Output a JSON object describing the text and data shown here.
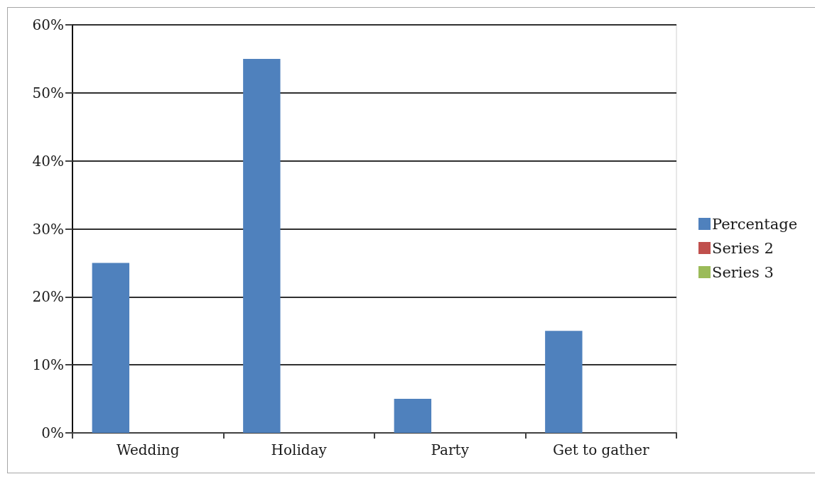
{
  "chart_data": {
    "type": "bar",
    "categories": [
      "Wedding",
      "Holiday",
      "Party",
      "Get to gather"
    ],
    "series": [
      {
        "name": "Percentage",
        "color": "#4f81bd",
        "values": [
          25,
          55,
          5,
          15
        ]
      },
      {
        "name": "Series 2",
        "color": "#c0504d",
        "values": [
          null,
          null,
          null,
          null
        ]
      },
      {
        "name": "Series 3",
        "color": "#9bbb59",
        "values": [
          null,
          null,
          null,
          null
        ]
      }
    ],
    "ylim": [
      0,
      60
    ],
    "yticks": [
      {
        "value": 0,
        "label": "0%"
      },
      {
        "value": 10,
        "label": "10%"
      },
      {
        "value": 20,
        "label": "20%"
      },
      {
        "value": 30,
        "label": "30%"
      },
      {
        "value": 40,
        "label": "40%"
      },
      {
        "value": 50,
        "label": "50%"
      },
      {
        "value": 60,
        "label": "60%"
      }
    ],
    "grid": "y",
    "legend": "right"
  }
}
